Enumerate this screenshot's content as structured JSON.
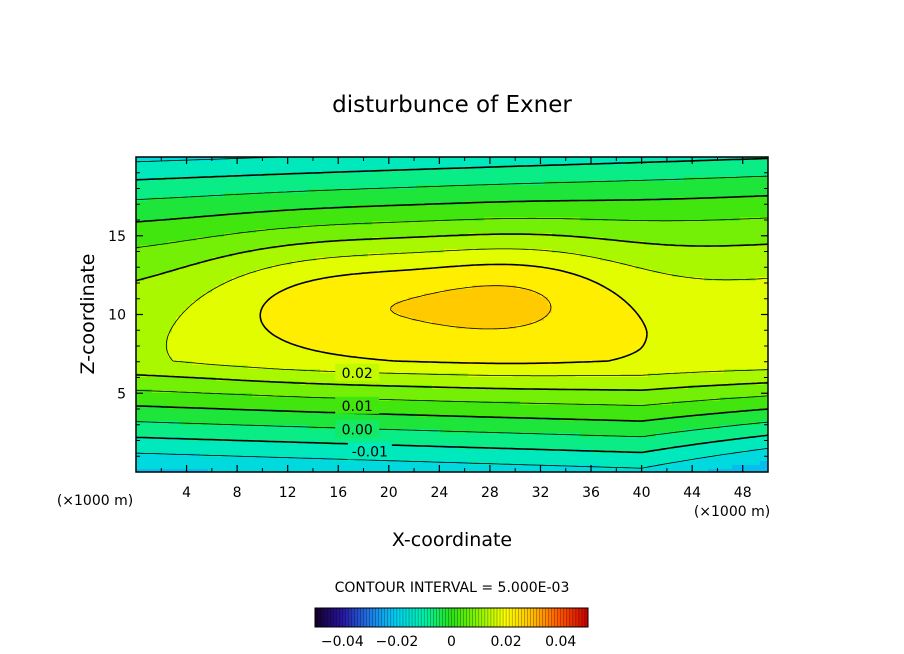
{
  "chart_data": {
    "type": "contour",
    "title": "disturbunce of Exner",
    "xlabel": "X-coordinate",
    "ylabel": "Z-coordinate",
    "x_unit_label": "(×1000 m)",
    "y_unit_label": "(×1000 m)",
    "xlim": [
      0,
      50
    ],
    "ylim": [
      0,
      20
    ],
    "x_ticks": [
      4,
      8,
      12,
      16,
      20,
      24,
      28,
      32,
      36,
      40,
      44,
      48
    ],
    "y_ticks": [
      5,
      10,
      15
    ],
    "contour_interval_text": "CONTOUR INTERVAL = 5.000E-03",
    "contour_interval": 0.005,
    "field_range": [
      -0.015,
      0.035
    ],
    "contour_labels": [
      {
        "text": "0.02",
        "x": 17.5,
        "z": 6.3
      },
      {
        "text": "0.01",
        "x": 17.5,
        "z": 4.2
      },
      {
        "text": "0.00",
        "x": 17.5,
        "z": 2.7
      },
      {
        "text": "-0.01",
        "x": 18.5,
        "z": 1.3
      }
    ],
    "colorbar": {
      "min": -0.05,
      "max": 0.05,
      "tick_values": [
        -0.04,
        -0.02,
        0,
        0.02,
        0.04
      ],
      "tick_labels": [
        "−0.04",
        "−0.02",
        "0",
        "0.02",
        "0.04"
      ]
    }
  }
}
